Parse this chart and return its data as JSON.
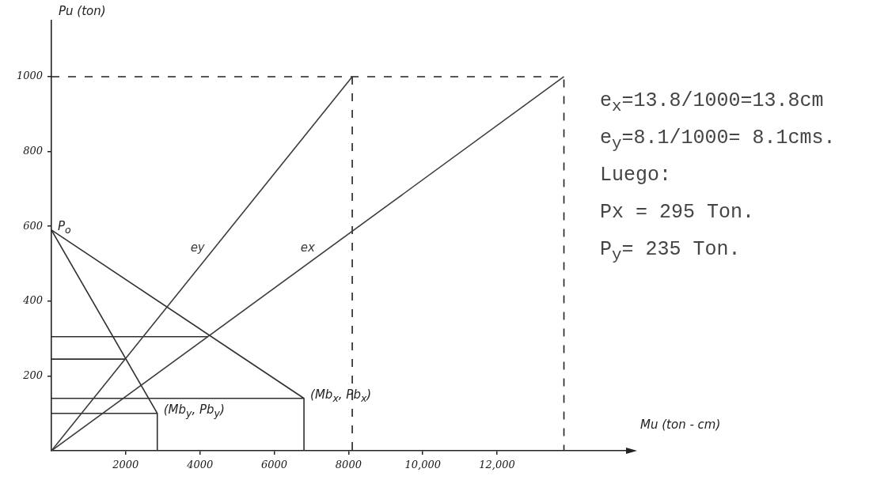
{
  "chart_data": {
    "type": "line",
    "xlabel": "Mu (ton - cm)",
    "ylabel": "Pu (ton)",
    "xlim": [
      0,
      15600
    ],
    "ylim": [
      0,
      1150
    ],
    "xticks": [
      2000,
      4000,
      6000,
      8000,
      {
        "value": 10000,
        "label": "10,000"
      },
      {
        "value": 12000,
        "label": "12,000"
      }
    ],
    "yticks": [
      200,
      400,
      600,
      800,
      1000
    ],
    "grid": false,
    "legend": false,
    "marker": "none",
    "series": [
      {
        "name": "ey",
        "color": "#3c3c3c",
        "x": [
          0,
          8100
        ],
        "values": [
          0,
          1000
        ]
      },
      {
        "name": "ex",
        "color": "#3c3c3c",
        "x": [
          0,
          13800
        ],
        "values": [
          0,
          1000
        ]
      },
      {
        "color": "#2e2e2e",
        "x": [
          0,
          6800
        ],
        "values": [
          590,
          140
        ]
      },
      {
        "color": "#2e2e2e",
        "x": [
          0,
          2850
        ],
        "values": [
          590,
          100
        ]
      },
      {
        "color": "#2e2e2e",
        "x": [
          0,
          6800,
          6800
        ],
        "values": [
          140,
          140,
          0
        ]
      },
      {
        "color": "#2e2e2e",
        "x": [
          0,
          2850,
          2850
        ],
        "values": [
          100,
          100,
          0
        ]
      },
      {
        "color": "#2e2e2e",
        "x": [
          0,
          4209
        ],
        "values": [
          305,
          305
        ]
      },
      {
        "color": "#2e2e2e",
        "x": [
          0,
          1985
        ],
        "values": [
          245,
          245
        ]
      },
      {
        "color": "#222222",
        "x": [
          0,
          13800,
          13800
        ],
        "values": [
          1000,
          1000,
          0
        ],
        "line_style": "dashed"
      },
      {
        "color": "#222222",
        "x": [
          8100,
          8100
        ],
        "values": [
          1000,
          0
        ],
        "line_style": "dashed"
      }
    ],
    "annotations": [
      {
        "text": "P$_{o}$",
        "x": 0,
        "y": 590
      },
      {
        "text": "(Mb$_{x}$, Pb$_{x}$)",
        "x": 6800,
        "y": 140
      },
      {
        "text": "(Mb$_{y}$, Pb$_{y}$)",
        "x": 2850,
        "y": 100
      },
      "e$_{x}$=13.8/1000=13.8cm",
      "e$_{y}$=8.1/1000= 8.1cms.",
      "Luego:",
      "Px = 295 Ton.",
      "P$_{y}$= 235 Ton."
    ]
  }
}
